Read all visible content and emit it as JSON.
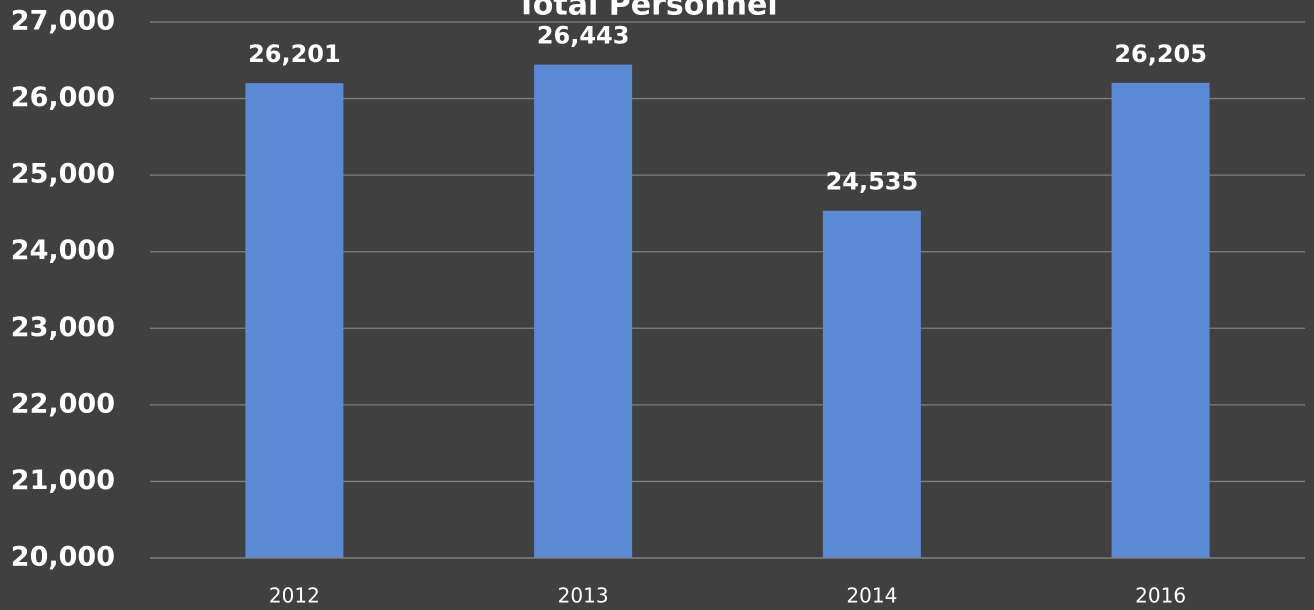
{
  "chart_data": {
    "type": "bar",
    "title": "Total Personnel",
    "categories": [
      "2012",
      "2013",
      "2014",
      "2016"
    ],
    "values": [
      26201,
      26443,
      24535,
      26205
    ],
    "value_labels": [
      "26,201",
      "26,443",
      "24,535",
      "26,205"
    ],
    "color": "#5a8ad4",
    "ylim": [
      20000,
      27000
    ],
    "yticks": [
      {
        "value": 20000,
        "label": "20,000"
      },
      {
        "value": 21000,
        "label": "21,000"
      },
      {
        "value": 22000,
        "label": "22,000"
      },
      {
        "value": 23000,
        "label": "23,000"
      },
      {
        "value": 24000,
        "label": "24,000"
      },
      {
        "value": 25000,
        "label": "25,000"
      },
      {
        "value": 26000,
        "label": "26,000"
      },
      {
        "value": 27000,
        "label": "27,000"
      }
    ],
    "grid": true
  }
}
